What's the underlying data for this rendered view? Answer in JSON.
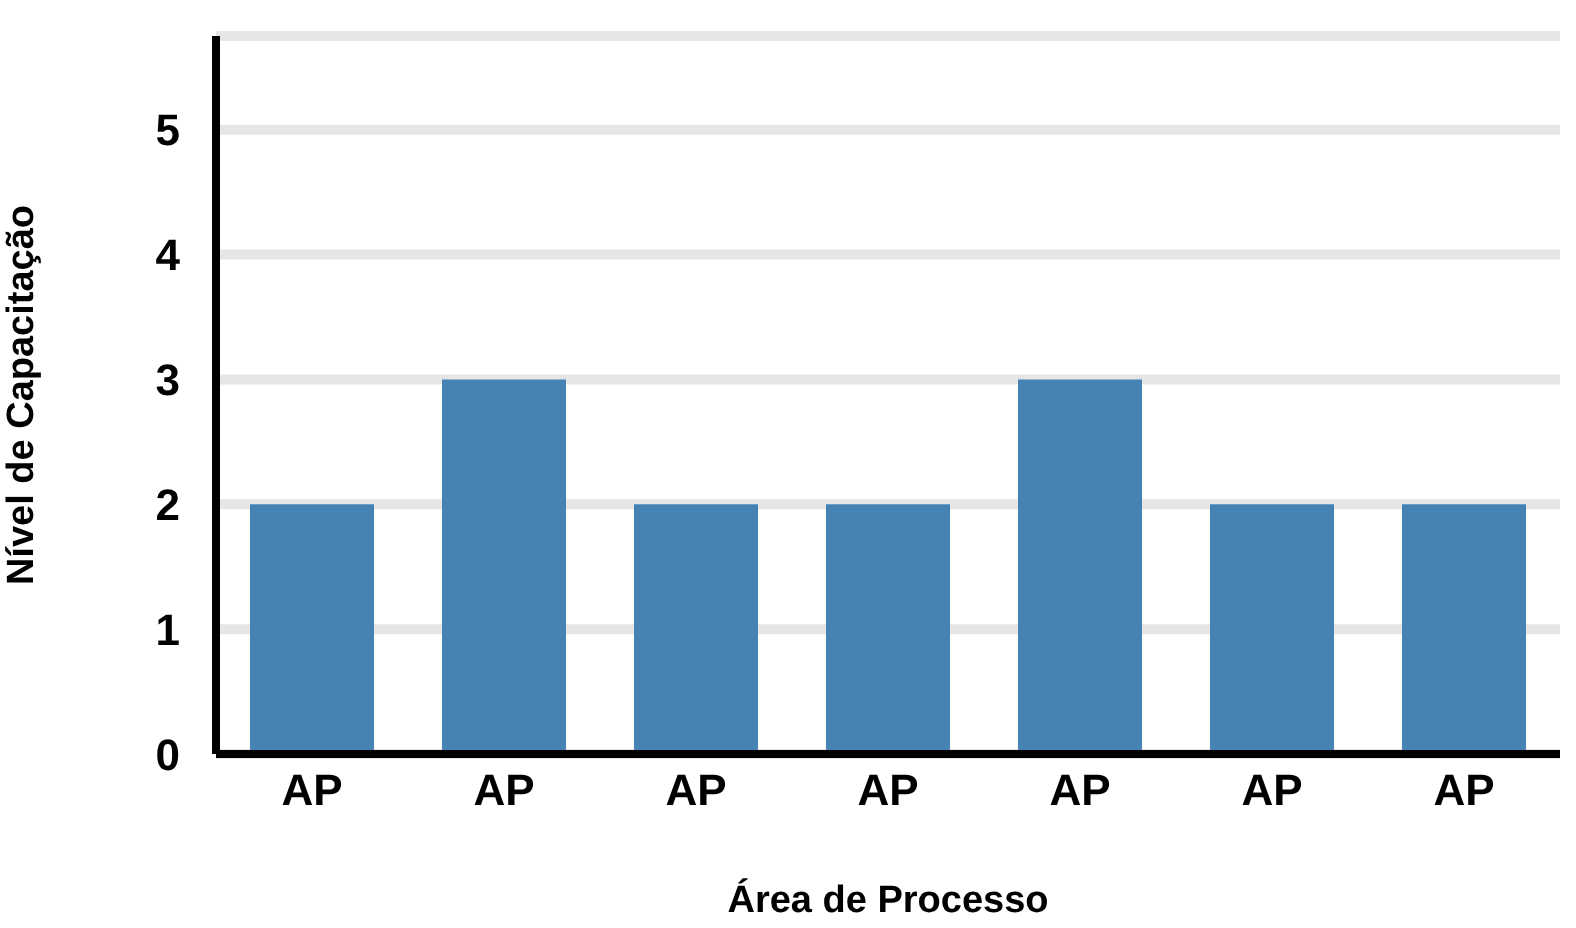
{
  "chart_data": {
    "type": "bar",
    "xlabel": "Área de Processo",
    "ylabel": "Nível de Capacitação",
    "categories": [
      "AP",
      "AP",
      "AP",
      "AP",
      "AP",
      "AP",
      "AP"
    ],
    "values": [
      2,
      3,
      2,
      2,
      3,
      2,
      2
    ],
    "color": "#4682b4",
    "ylim": [
      0,
      5.75
    ],
    "yticks": [
      0,
      1,
      2,
      3,
      4,
      5
    ],
    "grid": "y"
  }
}
